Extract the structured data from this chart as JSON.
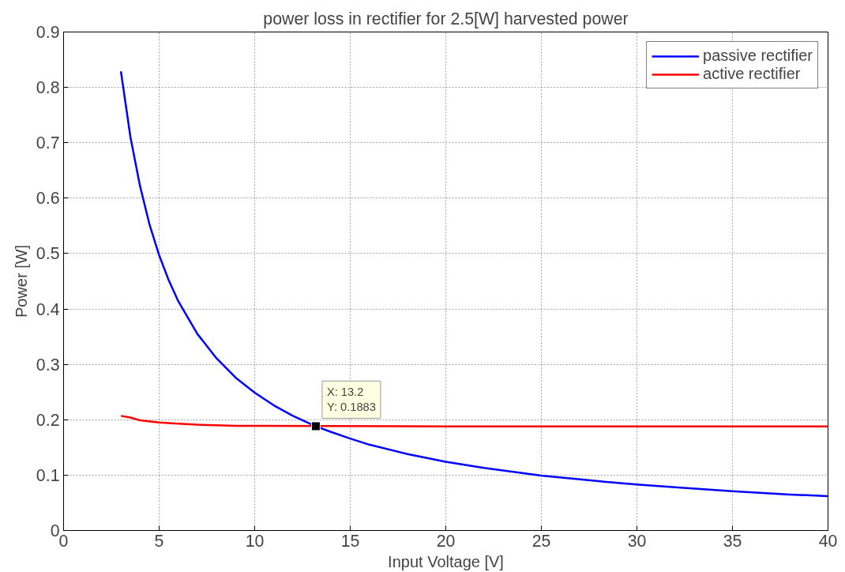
{
  "chart_data": {
    "type": "line",
    "title": "power loss in rectifier for 2.5[W] harvested power",
    "xlabel": "Input Voltage [V]",
    "ylabel": "Power [W]",
    "xlim": [
      0,
      40
    ],
    "ylim": [
      0,
      0.9
    ],
    "xticks": [
      0,
      5,
      10,
      15,
      20,
      25,
      30,
      35,
      40
    ],
    "yticks": [
      0,
      0.1,
      0.2,
      0.3,
      0.4,
      0.5,
      0.6,
      0.7,
      0.8,
      0.9
    ],
    "grid": true,
    "legend": "top right",
    "series": [
      {
        "name": "passive rectifier",
        "color": "#0000ff",
        "x": [
          3,
          3.5,
          4,
          4.5,
          5,
          5.5,
          6,
          7,
          8,
          9,
          10,
          11,
          12,
          13.2,
          14,
          15,
          16,
          18,
          20,
          22,
          25,
          28,
          30,
          32,
          35,
          38,
          40
        ],
        "values": [
          0.829,
          0.71,
          0.622,
          0.552,
          0.497,
          0.452,
          0.414,
          0.355,
          0.311,
          0.276,
          0.249,
          0.226,
          0.207,
          0.188,
          0.178,
          0.166,
          0.155,
          0.138,
          0.124,
          0.113,
          0.099,
          0.089,
          0.083,
          0.078,
          0.071,
          0.065,
          0.062
        ]
      },
      {
        "name": "active rectifier",
        "color": "#ff0000",
        "x": [
          3,
          3.5,
          4,
          5,
          6,
          7,
          8,
          9,
          10,
          20,
          30,
          40
        ],
        "values": [
          0.207,
          0.204,
          0.199,
          0.195,
          0.193,
          0.191,
          0.19,
          0.189,
          0.189,
          0.188,
          0.188,
          0.188
        ]
      }
    ],
    "annotations": [
      {
        "text": "X: 13.2\nY: 0.1883",
        "x": 13.2,
        "y": 0.1883
      }
    ]
  }
}
